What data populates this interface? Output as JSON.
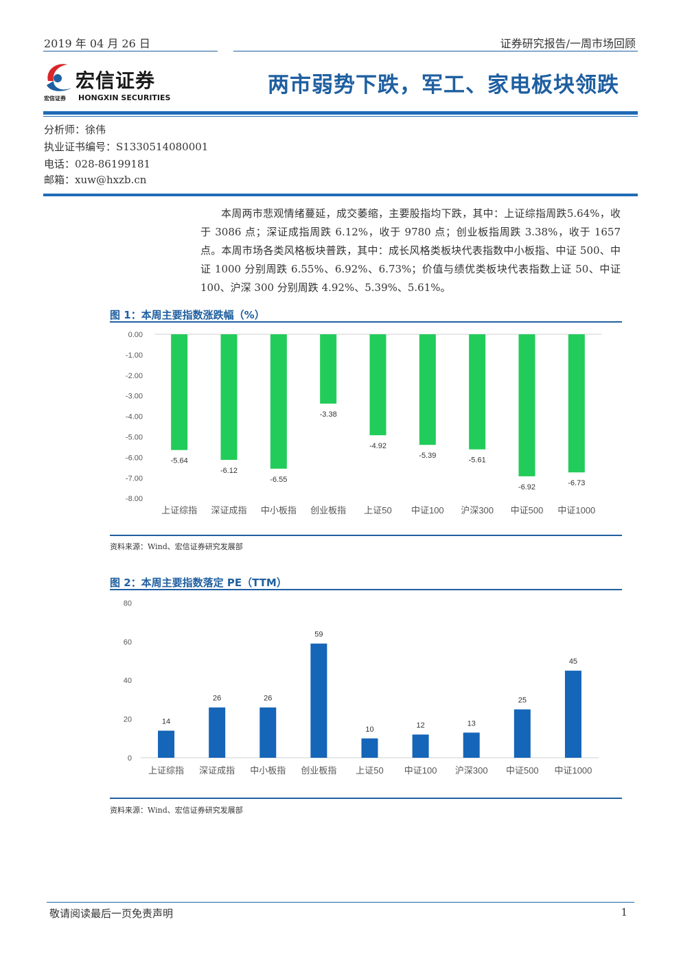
{
  "header": {
    "date": "2019 年 04 月 26 日",
    "report_type": "证券研究报告/一周市场回顾"
  },
  "logo": {
    "name_cn": "宏信证券",
    "name_en": "HONGXIN SECURITIES",
    "name_small": "宏信证券"
  },
  "title": "两市弱势下跌，军工、家电板块领跌",
  "analyst": {
    "name": "分析师：徐伟",
    "license": "执业证书编号：S1330514080001",
    "phone": "电话：028-86199181",
    "email": "邮箱：xuw@hxzb.cn"
  },
  "summary": "本周两市悲观情绪蔓延，成交萎缩，主要股指均下跌，其中：上证综指周跌5.64%，收于 3086 点；深证成指周跌 6.12%，收于 9780 点；创业板指周跌 3.38%，收于 1657 点。本周市场各类风格板块普跌，其中：成长风格类板块代表指数中小板指、中证 500、中证 1000 分别周跌 6.55%、6.92%、6.73%；价值与绩优类板块代表指数上证 50、中证 100、沪深 300 分别周跌 4.92%、5.39%、5.61%。",
  "figure1": {
    "title": "图 1：本周主要指数涨跌幅（%）",
    "source": "资料来源：Wind、宏信证券研究发展部"
  },
  "figure2": {
    "title": "图 2：本周主要指数落定 PE（TTM）",
    "source": "资料来源：Wind、宏信证券研究发展部"
  },
  "colors": {
    "brand_blue": "#1f5fa0",
    "bar_green": "#22cc5a",
    "bar_blue": "#1565b8"
  },
  "chart_data": [
    {
      "type": "bar",
      "title": "图 1：本周主要指数涨跌幅（%）",
      "categories": [
        "上证综指",
        "深证成指",
        "中小板指",
        "创业板指",
        "上证50",
        "中证100",
        "沪深300",
        "中证500",
        "中证1000"
      ],
      "values": [
        -5.64,
        -6.12,
        -6.55,
        -3.38,
        -4.92,
        -5.39,
        -5.61,
        -6.92,
        -6.73
      ],
      "value_labels": [
        "-5.64",
        "-6.12",
        "-6.55",
        "-3.38",
        "-4.92",
        "-5.39",
        "-5.61",
        "-6.92",
        "-6.73"
      ],
      "yticks": [
        "0.00",
        "-1.00",
        "-2.00",
        "-3.00",
        "-4.00",
        "-5.00",
        "-6.00",
        "-7.00",
        "-8.00"
      ],
      "ylim": [
        -8,
        0
      ],
      "grid": false,
      "legend": "none"
    },
    {
      "type": "bar",
      "title": "图 2：本周主要指数落定 PE（TTM）",
      "categories": [
        "上证综指",
        "深证成指",
        "中小板指",
        "创业板指",
        "上证50",
        "中证100",
        "沪深300",
        "中证500",
        "中证1000"
      ],
      "values": [
        14,
        26,
        26,
        59,
        10,
        12,
        13,
        25,
        45
      ],
      "value_labels": [
        "14",
        "26",
        "26",
        "59",
        "10",
        "12",
        "13",
        "25",
        "45"
      ],
      "yticks": [
        "80",
        "60",
        "40",
        "20",
        "0"
      ],
      "ylim": [
        0,
        80
      ],
      "grid": false,
      "legend": "none"
    }
  ],
  "footer": {
    "disclaimer": "敬请阅读最后一页免责声明",
    "page": "1"
  }
}
